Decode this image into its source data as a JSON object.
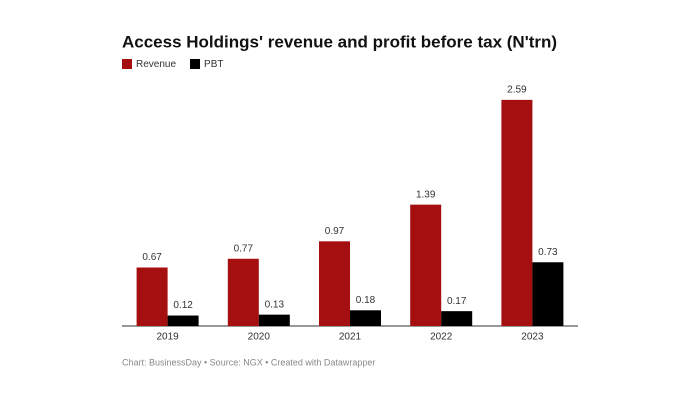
{
  "chart_data": {
    "type": "bar",
    "title": "Access Holdings' revenue and profit before tax (N'trn)",
    "categories": [
      "2019",
      "2020",
      "2021",
      "2022",
      "2023"
    ],
    "series": [
      {
        "name": "Revenue",
        "color": "#a50f0f",
        "values": [
          0.67,
          0.77,
          0.97,
          1.39,
          2.59
        ]
      },
      {
        "name": "PBT",
        "color": "#000000",
        "values": [
          0.12,
          0.13,
          0.18,
          0.17,
          0.73
        ]
      }
    ],
    "ylim": [
      0,
      2.6
    ],
    "footer": "Chart: BusinessDay • Source: NGX • Created with Datawrapper"
  }
}
